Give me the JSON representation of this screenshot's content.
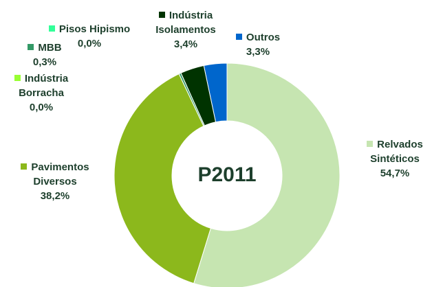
{
  "chart_data": {
    "type": "pie",
    "donut": true,
    "center_label": "P2011",
    "categories": [
      "Relvados Sintéticos",
      "Pavimentos Diversos",
      "Indústria Borracha",
      "MBB",
      "Pisos Hipismo",
      "Indústria Isolamentos",
      "Outros"
    ],
    "values": [
      54.7,
      38.2,
      0.0,
      0.3,
      0.0,
      3.4,
      3.3
    ],
    "value_labels": [
      "54,7%",
      "38,2%",
      "0,0%",
      "0,3%",
      "0,0%",
      "3,4%",
      "3,3%"
    ],
    "colors": [
      "#c6e5b1",
      "#8cb81c",
      "#99ff33",
      "#339966",
      "#33ff99",
      "#003300",
      "#0066cc"
    ]
  }
}
